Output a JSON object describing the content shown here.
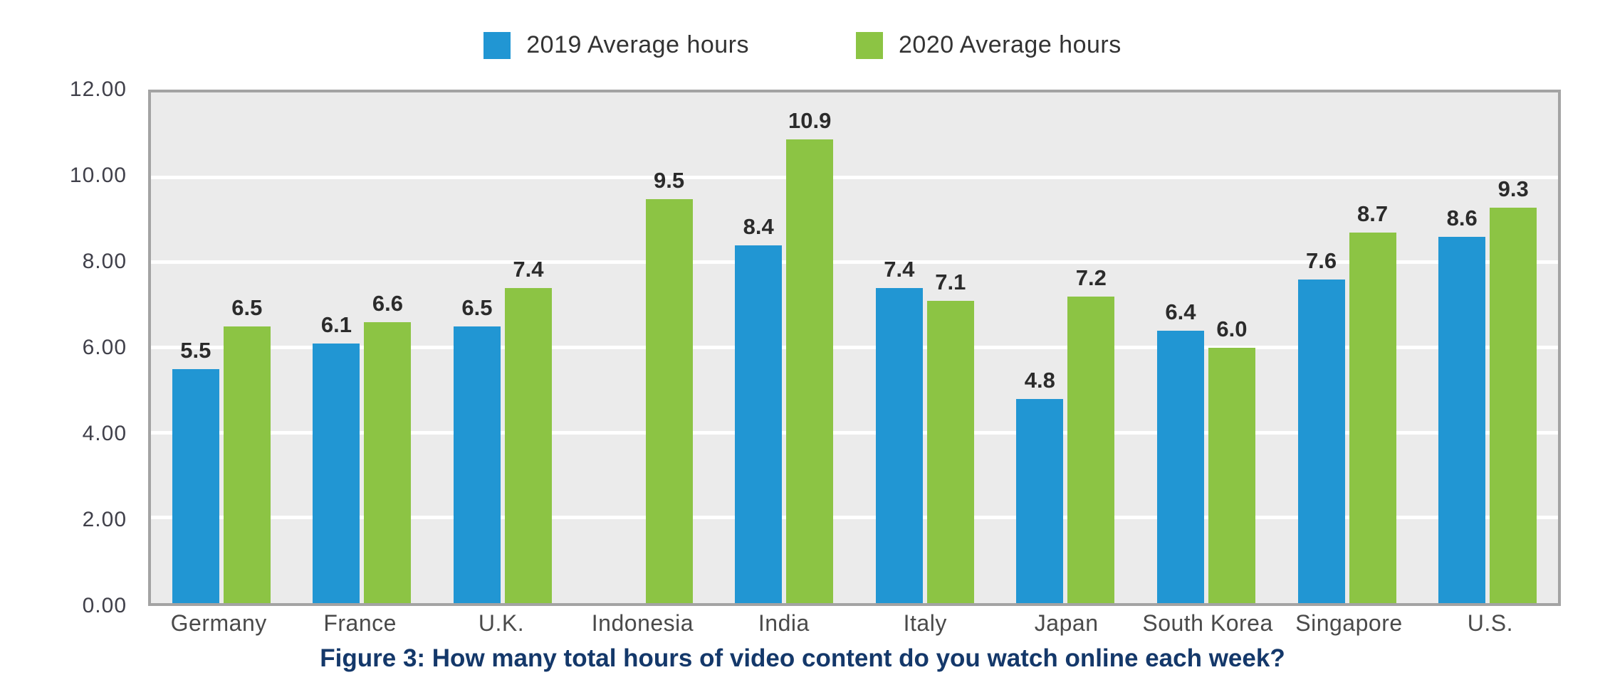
{
  "legend": {
    "items": [
      {
        "label": "2019 Average hours",
        "color": "#2196d3"
      },
      {
        "label": "2020 Average hours",
        "color": "#8cc444"
      }
    ]
  },
  "chart_data": {
    "type": "bar",
    "title": "",
    "categories": [
      "Germany",
      "France",
      "U.K.",
      "Indonesia",
      "India",
      "Italy",
      "Japan",
      "South Korea",
      "Singapore",
      "U.S."
    ],
    "series": [
      {
        "name": "2019 Average hours",
        "color": "#2196d3",
        "values": [
          5.5,
          6.1,
          6.5,
          null,
          8.4,
          7.4,
          4.8,
          6.4,
          7.6,
          8.6
        ]
      },
      {
        "name": "2020 Average hours",
        "color": "#8cc444",
        "values": [
          6.5,
          6.6,
          7.4,
          9.5,
          10.9,
          7.1,
          7.2,
          6.0,
          8.7,
          9.3
        ]
      }
    ],
    "xlabel": "",
    "ylabel": "",
    "ylim": [
      0,
      12
    ],
    "yticks": [
      {
        "value": 12,
        "label": "12.00"
      },
      {
        "value": 10,
        "label": "10.00"
      },
      {
        "value": 8,
        "label": "8.00"
      },
      {
        "value": 6,
        "label": "6.00"
      },
      {
        "value": 4,
        "label": "4.00"
      },
      {
        "value": 2,
        "label": "2.00"
      },
      {
        "value": 0,
        "label": "0.00"
      }
    ],
    "gridlines": [
      2,
      4,
      6,
      8,
      10
    ],
    "grid": true,
    "data_labels": true,
    "legend_position": "top"
  },
  "caption": "Figure 3: How many total hours of video content do you watch online each week?",
  "colors": {
    "bar_2019": "#2196d3",
    "bar_2020": "#8cc444",
    "plot_background": "#ebebeb",
    "gridline": "#ffffff",
    "plot_border": "#a3a3a3",
    "data_label": "#2b2b2b",
    "tick_label": "#40404a",
    "x_label": "#4a4a4a",
    "caption": "#14386a",
    "legend_text": "#333333"
  }
}
